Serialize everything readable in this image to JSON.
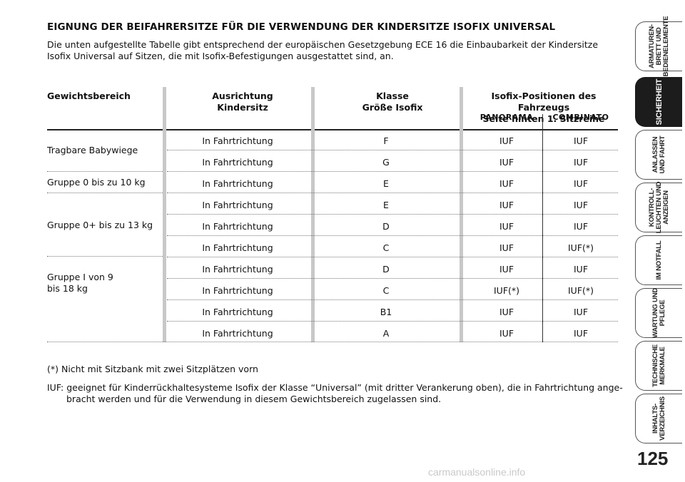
{
  "heading": "EIGNUNG DER BEIFAHRERSITZE FÜR DIE VERWENDUNG DER KINDERSITZE ISOFIX UNIVERSAL",
  "intro": "Die unten aufgestellte Tabelle gibt entsprechend der europäischen Gesetzgebung ECE 16 die Einbaubarkeit der Kindersitze Isofix Universal auf Sitzen, die mit Isofix-Befestigungen ausgestattet sind, an.",
  "table": {
    "headers": {
      "weight": "Gewichtsbereich",
      "orientation_1": "Ausrichtung",
      "orientation_2": "Kindersitz",
      "class_1": "Klasse",
      "class_2": "Größe Isofix",
      "isofix_1": "Isofix-Positionen des Fahrzeugs",
      "isofix_2": "Seite hinten 1. Sitzreihe",
      "panorama": "PANORAMA",
      "combinato": "COMBINATO"
    },
    "groups": [
      {
        "label": "Tragbare Babywiege"
      },
      {
        "label": "Gruppe 0 bis zu 10 kg"
      },
      {
        "label": "Gruppe 0+ bis zu 13 kg"
      },
      {
        "label_1": "Gruppe I von 9",
        "label_2": "bis 18 kg"
      }
    ],
    "rows": [
      {
        "orientation": "In Fahrtrichtung",
        "class": "F",
        "panorama": "IUF",
        "combinato": "IUF"
      },
      {
        "orientation": "In Fahrtrichtung",
        "class": "G",
        "panorama": "IUF",
        "combinato": "IUF"
      },
      {
        "orientation": "In Fahrtrichtung",
        "class": "E",
        "panorama": "IUF",
        "combinato": "IUF"
      },
      {
        "orientation": "In Fahrtrichtung",
        "class": "E",
        "panorama": "IUF",
        "combinato": "IUF"
      },
      {
        "orientation": "In Fahrtrichtung",
        "class": "D",
        "panorama": "IUF",
        "combinato": "IUF"
      },
      {
        "orientation": "In Fahrtrichtung",
        "class": "C",
        "panorama": "IUF",
        "combinato": "IUF(*)"
      },
      {
        "orientation": "In Fahrtrichtung",
        "class": "D",
        "panorama": "IUF",
        "combinato": "IUF"
      },
      {
        "orientation": "In Fahrtrichtung",
        "class": "C",
        "panorama": "IUF(*)",
        "combinato": "IUF(*)"
      },
      {
        "orientation": "In Fahrtrichtung",
        "class": "B1",
        "panorama": "IUF",
        "combinato": "IUF"
      },
      {
        "orientation": "In Fahrtrichtung",
        "class": "A",
        "panorama": "IUF",
        "combinato": "IUF"
      }
    ]
  },
  "footnote": "(*) Nicht mit Sitzbank mit zwei Sitzplätzen vorn",
  "iuf_note": "IUF: geeignet für Kinderrückhaltesysteme Isofix der Klasse “Universal” (mit dritter Verankerung oben), die in Fahrtrichtung ange- bracht werden und für die Verwendung in diesem Gewichtsbereich zugelassen sind.",
  "sidebar": {
    "tabs": [
      {
        "label": "ARMATUREN-\nBRETT UND\nBEDIENELEMENTE",
        "active": false
      },
      {
        "label": "SICHERHEIT",
        "active": true
      },
      {
        "label": "ANLASSEN\nUND FAHRT",
        "active": false
      },
      {
        "label": "KONTROLL-\nLEUCHTEN UND\nANZEIGEN",
        "active": false
      },
      {
        "label": "IM NOTFALL",
        "active": false
      },
      {
        "label": "WARTUNG UND\nPFLEGE",
        "active": false
      },
      {
        "label": "TECHNISCHE\nMERKMALE",
        "active": false
      },
      {
        "label": "INHALTS-\nVERZEICHNIS",
        "active": false
      }
    ]
  },
  "page_number": "125",
  "watermark": "carmanualsonline.info"
}
